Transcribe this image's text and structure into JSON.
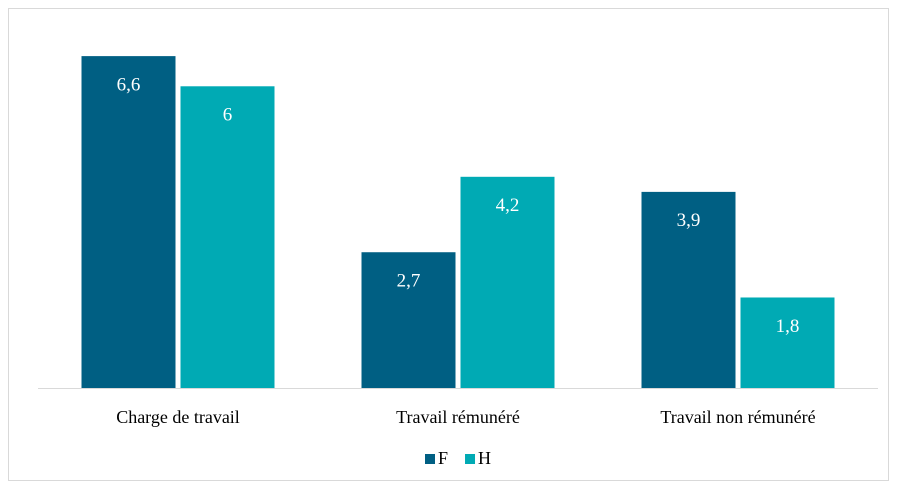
{
  "chart_data": {
    "type": "bar",
    "categories": [
      "Charge de travail",
      "Travail rémunéré",
      "Travail non rémunéré"
    ],
    "series": [
      {
        "name": "F",
        "color": "#005f83",
        "values": [
          6.6,
          2.7,
          3.9
        ],
        "value_labels": [
          "6,6",
          "2,7",
          "3,9"
        ]
      },
      {
        "name": "H",
        "color": "#00aab4",
        "values": [
          6,
          4.2,
          1.8
        ],
        "value_labels": [
          "6",
          "4,2",
          "1,8"
        ]
      }
    ],
    "ylim": [
      0,
      7
    ],
    "legend": "bottom"
  }
}
